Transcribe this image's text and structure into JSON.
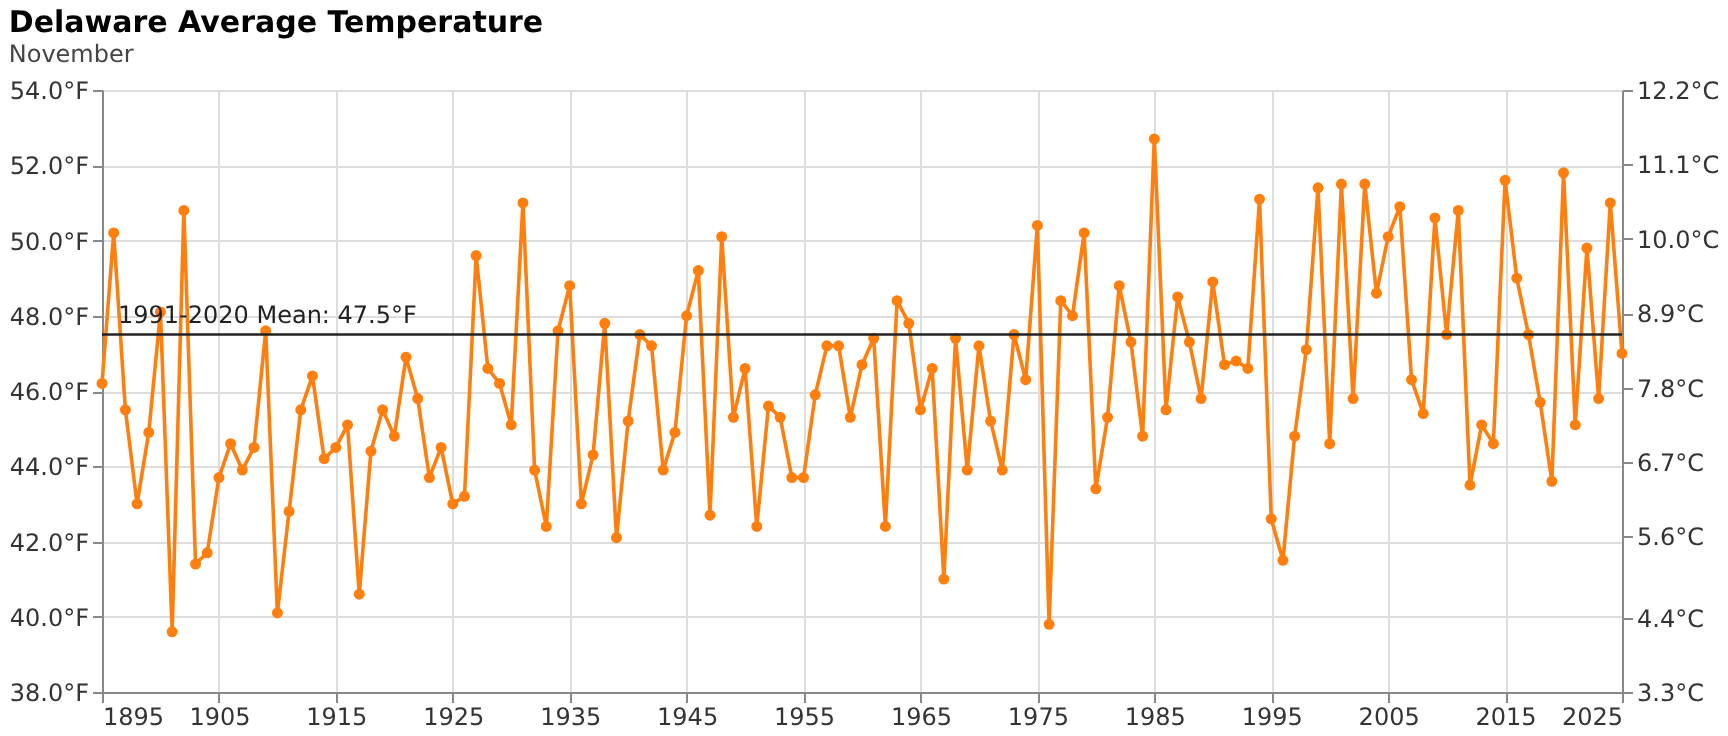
{
  "chart_data": {
    "type": "line",
    "title": "Delaware Average Temperature",
    "subtitle": "November",
    "x": [
      1895,
      1896,
      1897,
      1898,
      1899,
      1900,
      1901,
      1902,
      1903,
      1904,
      1905,
      1906,
      1907,
      1908,
      1909,
      1910,
      1911,
      1912,
      1913,
      1914,
      1915,
      1916,
      1917,
      1918,
      1919,
      1920,
      1921,
      1922,
      1923,
      1924,
      1925,
      1926,
      1927,
      1928,
      1929,
      1930,
      1931,
      1932,
      1933,
      1934,
      1935,
      1936,
      1937,
      1938,
      1939,
      1940,
      1941,
      1942,
      1943,
      1944,
      1945,
      1946,
      1947,
      1948,
      1949,
      1950,
      1951,
      1952,
      1953,
      1954,
      1955,
      1956,
      1957,
      1958,
      1959,
      1960,
      1961,
      1962,
      1963,
      1964,
      1965,
      1966,
      1967,
      1968,
      1969,
      1970,
      1971,
      1972,
      1973,
      1974,
      1975,
      1976,
      1977,
      1978,
      1979,
      1980,
      1981,
      1982,
      1983,
      1984,
      1985,
      1986,
      1987,
      1988,
      1989,
      1990,
      1991,
      1992,
      1993,
      1994,
      1995,
      1996,
      1997,
      1998,
      1999,
      2000,
      2001,
      2002,
      2003,
      2004,
      2005,
      2006,
      2007,
      2008,
      2009,
      2010,
      2011,
      2012,
      2013,
      2014,
      2015,
      2016,
      2017,
      2018,
      2019,
      2020,
      2021,
      2022,
      2023,
      2024,
      2025
    ],
    "series": [
      {
        "color": "#ff7f0e",
        "values": [
          46.2,
          50.2,
          45.5,
          43.0,
          44.9,
          48.1,
          39.6,
          50.8,
          41.4,
          41.7,
          43.7,
          44.6,
          43.9,
          44.5,
          47.6,
          40.1,
          42.8,
          45.5,
          46.4,
          44.2,
          44.5,
          45.1,
          40.6,
          44.4,
          45.5,
          44.8,
          46.9,
          45.8,
          43.7,
          44.5,
          43.0,
          43.2,
          49.6,
          46.6,
          46.2,
          45.1,
          51.0,
          43.9,
          42.4,
          47.6,
          48.8,
          43.0,
          44.3,
          47.8,
          42.1,
          45.2,
          47.5,
          47.2,
          43.9,
          44.9,
          48.0,
          49.2,
          42.7,
          50.1,
          45.3,
          46.6,
          42.4,
          45.6,
          45.3,
          43.7,
          43.7,
          45.9,
          47.2,
          47.2,
          45.3,
          46.7,
          47.4,
          42.4,
          48.4,
          47.8,
          45.5,
          46.6,
          41.0,
          47.4,
          43.9,
          47.2,
          45.2,
          43.9,
          47.5,
          46.3,
          50.4,
          39.8,
          48.4,
          48.0,
          50.2,
          43.4,
          45.3,
          48.8,
          47.3,
          44.8,
          52.7,
          45.5,
          48.5,
          47.3,
          45.8,
          48.9,
          46.7,
          46.8,
          46.6,
          51.1,
          42.6,
          41.5,
          44.8,
          47.1,
          51.4,
          44.6,
          51.5,
          45.8,
          51.5,
          48.6,
          50.1,
          50.9,
          46.3,
          45.4,
          50.6,
          47.5,
          50.8,
          43.5,
          45.1,
          44.6,
          51.6,
          49.0,
          47.5,
          45.7,
          43.6,
          51.8,
          45.1,
          49.8,
          45.8,
          51.0,
          47.0
        ]
      }
    ],
    "xlim": [
      1895,
      2025
    ],
    "xticks": [
      1895,
      1905,
      1915,
      1925,
      1935,
      1945,
      1955,
      1965,
      1975,
      1985,
      1995,
      2005,
      2015,
      2025
    ],
    "ylim": [
      38,
      54
    ],
    "yticks": [
      {
        "value": 38,
        "label": "38.0°F"
      },
      {
        "value": 40,
        "label": "40.0°F"
      },
      {
        "value": 42,
        "label": "42.0°F"
      },
      {
        "value": 44,
        "label": "44.0°F"
      },
      {
        "value": 46,
        "label": "46.0°F"
      },
      {
        "value": 48,
        "label": "48.0°F"
      },
      {
        "value": 50,
        "label": "50.0°F"
      },
      {
        "value": 52,
        "label": "52.0°F"
      },
      {
        "value": 54,
        "label": "54.0°F"
      }
    ],
    "y2lim": [
      3.3,
      12.2
    ],
    "y2ticks": [
      {
        "value": 3.3,
        "label": "3.3°C"
      },
      {
        "value": 4.4,
        "label": "4.4°C"
      },
      {
        "value": 5.6,
        "label": "5.6°C"
      },
      {
        "value": 6.7,
        "label": "6.7°C"
      },
      {
        "value": 7.8,
        "label": "7.8°C"
      },
      {
        "value": 8.9,
        "label": "8.9°C"
      },
      {
        "value": 10.0,
        "label": "10.0°C"
      },
      {
        "value": 11.1,
        "label": "11.1°C"
      },
      {
        "value": 12.2,
        "label": "12.2°C"
      }
    ],
    "ref_lines": [
      {
        "axis": "y",
        "value": 47.5,
        "label": "1991-2020 Mean: 47.5°F",
        "color": "#222222"
      }
    ],
    "grid": true,
    "marker": "circle",
    "line_style": "solid"
  }
}
